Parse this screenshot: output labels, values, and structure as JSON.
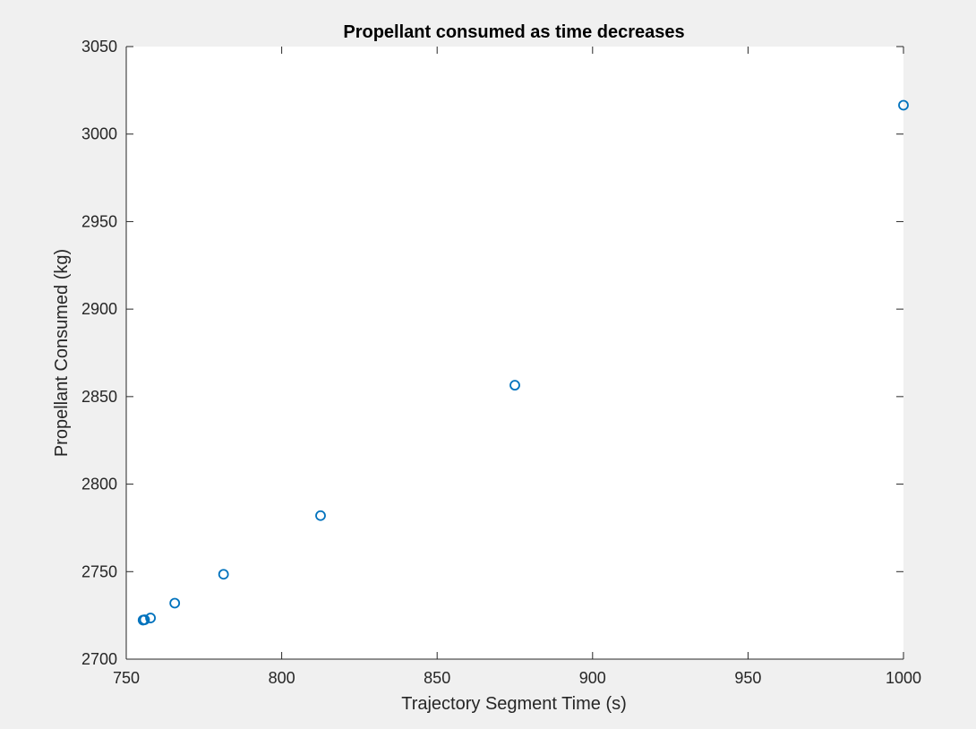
{
  "chart_data": {
    "type": "scatter",
    "title": "Propellant consumed as time decreases",
    "xlabel": "Trajectory Segment Time (s)",
    "ylabel": "Propellant Consumed (kg)",
    "xlim": [
      750,
      1000
    ],
    "ylim": [
      2700,
      3050
    ],
    "xticks": [
      "750",
      "800",
      "850",
      "900",
      "950",
      "1000"
    ],
    "yticks": [
      "2700",
      "2750",
      "2800",
      "2850",
      "2900",
      "2950",
      "3000",
      "3050"
    ],
    "grid": false,
    "legend": "none",
    "marker": "circle-open",
    "color": "#0072bd",
    "series": [
      {
        "x": [
          1000,
          875,
          812.5,
          781.3,
          765.6,
          757.8,
          755.9,
          755.4
        ],
        "y": [
          3016.5,
          2856.5,
          2782,
          2748.5,
          2732,
          2723.5,
          2722.5,
          2722.3
        ]
      }
    ]
  }
}
